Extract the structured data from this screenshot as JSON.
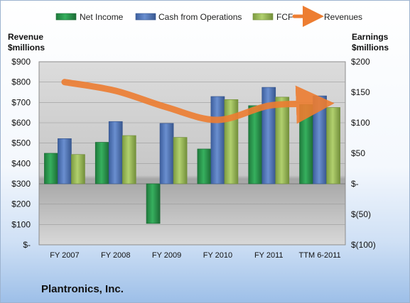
{
  "company_name": "Plantronics, Inc.",
  "colors": {
    "net_income": "#2a9a4e",
    "cash_from_operations": "#5476b8",
    "fcf": "#9bbb59",
    "revenues": "#ed7d31"
  },
  "chart_data": {
    "type": "bar",
    "categories": [
      "FY 2007",
      "FY 2008",
      "FY 2009",
      "FY 2010",
      "FY 2011",
      "TTM 6-2011"
    ],
    "series": [
      {
        "name": "Net Income",
        "axis": "right",
        "values": [
          50,
          68,
          -65,
          57,
          128,
          130
        ]
      },
      {
        "name": "Cash from Operations",
        "axis": "right",
        "values": [
          74,
          102,
          99,
          143,
          158,
          144
        ]
      },
      {
        "name": "FCF",
        "axis": "right",
        "values": [
          48,
          79,
          76,
          138,
          142,
          125
        ]
      },
      {
        "name": "Revenues",
        "type": "line",
        "axis": "left",
        "values": [
          800,
          757,
          676,
          614,
          684,
          692
        ]
      }
    ],
    "y_left": {
      "title_line1": "Revenue",
      "title_line2": "$millions",
      "range": [
        0,
        900
      ],
      "ticks": [
        0,
        100,
        200,
        300,
        400,
        500,
        600,
        700,
        800,
        900
      ],
      "tick_labels": [
        "$-",
        "$100",
        "$200",
        "$300",
        "$400",
        "$500",
        "$600",
        "$700",
        "$800",
        "$900"
      ]
    },
    "y_right": {
      "title_line1": "Earnings",
      "title_line2": "$millions",
      "range": [
        -100,
        200
      ],
      "ticks": [
        -100,
        -50,
        0,
        50,
        100,
        150,
        200
      ],
      "tick_labels": [
        "$(100)",
        "$(50)",
        "$-",
        "$50",
        "$100",
        "$150",
        "$200"
      ]
    },
    "legend_position": "top",
    "grid": true
  }
}
